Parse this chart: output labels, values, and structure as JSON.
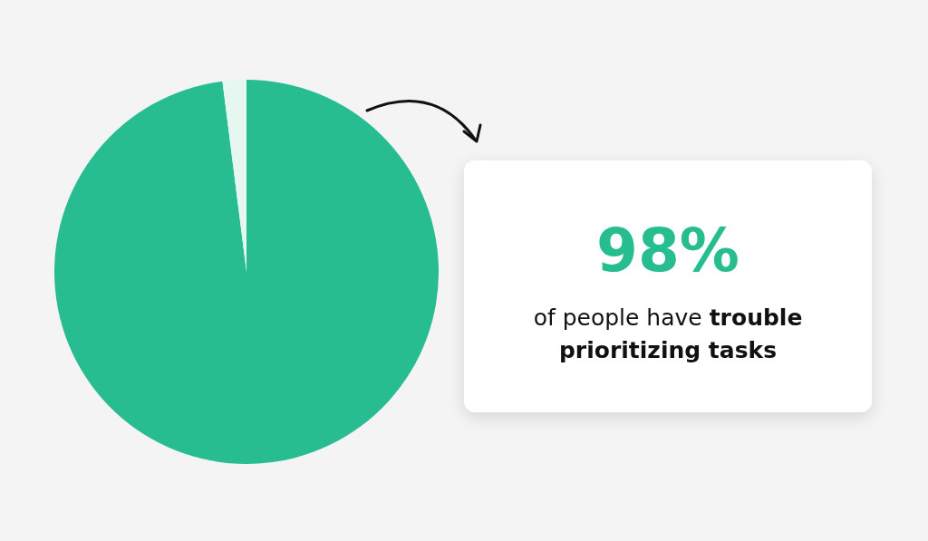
{
  "chart_data": {
    "type": "pie",
    "categories": [
      null,
      null
    ],
    "values": [
      98,
      2
    ],
    "colors": [
      "#27bd91",
      "#e6f7f2"
    ],
    "legend": false,
    "annotations": [
      "98%",
      "of people have",
      "trouble prioritizing tasks"
    ]
  }
}
